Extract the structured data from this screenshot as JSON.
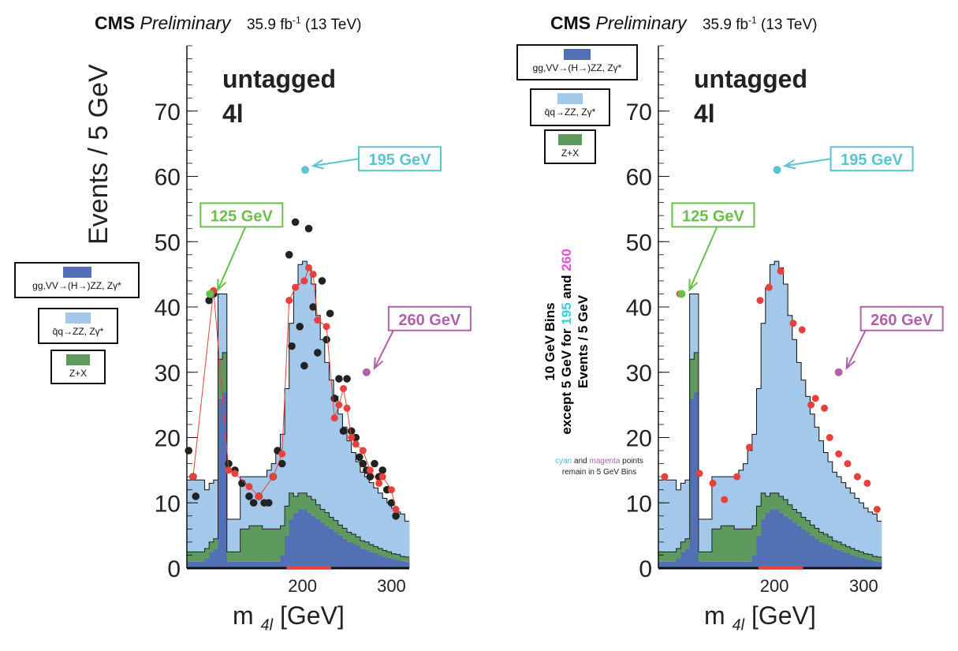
{
  "header": {
    "experiment": "CMS",
    "status": "Preliminary",
    "lumi": "35.9 fb",
    "lumi_sup": "-1",
    "energy": "(13 TeV)"
  },
  "ylabel": "Events / 5 GeV",
  "xlabel": "m",
  "xlabel_sub": "4l",
  "xlabel_unit": "[GeV]",
  "category": {
    "line1": "untagged",
    "line2": "4l"
  },
  "legend": [
    {
      "label": "gg,VV→(H→)ZZ, Zγ*",
      "color": "#5470b4"
    },
    {
      "label": "q̄q→ZZ, Zγ*",
      "color": "#a3c8ea"
    },
    {
      "label": "Z+X",
      "color": "#5e9a5e"
    }
  ],
  "right_note": {
    "line1": "10 GeV Bins",
    "line2a": "except 5 GeV for ",
    "v195": "195",
    "and": " and ",
    "v260": "260",
    "line3": "Events / 5 GeV"
  },
  "small_note": {
    "cyan": "cyan",
    "and": " and ",
    "magenta": "magenta",
    "rest": " points",
    "line2": "remain in 5 GeV Bins"
  },
  "colors": {
    "ggH": "#5470b4",
    "qqZZ": "#a3c8ea",
    "zx": "#5e9a5e",
    "data": "#222222",
    "fit": "#e8413c",
    "cyan": "#5bc4d0",
    "magenta": "#b062a8",
    "green": "#6abf4b"
  },
  "chart_data": [
    {
      "type": "histogram",
      "panel": "left",
      "xlim": [
        70,
        320
      ],
      "ylim": [
        0,
        80
      ],
      "yticks": [
        0,
        10,
        20,
        30,
        40,
        50,
        60,
        70
      ],
      "xticks": [
        200,
        300
      ],
      "bin_width": 5,
      "bin_low": [
        70,
        75,
        80,
        85,
        90,
        95,
        100,
        105,
        110,
        115,
        120,
        125,
        130,
        135,
        140,
        145,
        150,
        155,
        160,
        165,
        170,
        175,
        180,
        185,
        190,
        195,
        200,
        205,
        210,
        215,
        220,
        225,
        230,
        235,
        240,
        245,
        250,
        255,
        260,
        265,
        270,
        275,
        280,
        285,
        290,
        295,
        300,
        305,
        310,
        315
      ],
      "stack": {
        "ggH": [
          1,
          1,
          1,
          1,
          1.5,
          2.5,
          3,
          26,
          27,
          1,
          1,
          1,
          1,
          1,
          1,
          1,
          1,
          1,
          1,
          1,
          1,
          2,
          5,
          7.5,
          8.5,
          9,
          9,
          8.5,
          8,
          7.5,
          7,
          6.5,
          6,
          5.5,
          5,
          4.5,
          4,
          3.8,
          3.5,
          3,
          2.8,
          2.5,
          2.3,
          2,
          1.8,
          1.6,
          1.4,
          1.3,
          1.1,
          1
        ],
        "zx": [
          1.5,
          1.5,
          1.5,
          1.5,
          1.5,
          1.5,
          1.5,
          6,
          6,
          1.5,
          1.5,
          1.5,
          5,
          5,
          5.5,
          5.5,
          5.5,
          5,
          5,
          5,
          5,
          4.5,
          4.5,
          4,
          2.5,
          2.5,
          2.5,
          2.5,
          2.5,
          2.2,
          2,
          2,
          1.8,
          1.8,
          1.6,
          1.6,
          1.5,
          1.4,
          1.3,
          1.2,
          1.2,
          1.1,
          1,
          1,
          0.9,
          0.9,
          0.8,
          0.8,
          0.7,
          0.7
        ],
        "qqZZ": [
          11,
          11,
          11,
          11,
          9,
          9,
          9,
          10,
          9,
          5,
          5,
          5,
          8,
          8,
          7.5,
          7.5,
          7.5,
          8,
          9,
          10,
          12,
          14,
          18,
          26,
          32,
          35,
          35.5,
          35,
          33,
          29,
          26,
          23,
          21,
          19,
          17,
          15.5,
          14,
          12.5,
          11.5,
          10.5,
          10,
          9.5,
          9,
          8.5,
          8,
          7.5,
          7,
          6.5,
          6.5,
          5.5
        ]
      },
      "data_points": [
        [
          72,
          18
        ],
        [
          77,
          14
        ],
        [
          80,
          11
        ],
        [
          95,
          41
        ],
        [
          100,
          42
        ],
        [
          117,
          16
        ],
        [
          124,
          15
        ],
        [
          132,
          13
        ],
        [
          140,
          11
        ],
        [
          145,
          10
        ],
        [
          151,
          11
        ],
        [
          157,
          10
        ],
        [
          162,
          10
        ],
        [
          167,
          14
        ],
        [
          172,
          18
        ],
        [
          177,
          16
        ],
        [
          185,
          48
        ],
        [
          188,
          34
        ],
        [
          192,
          53
        ],
        [
          197,
          37
        ],
        [
          202,
          31
        ],
        [
          207,
          52
        ],
        [
          212,
          40
        ],
        [
          217,
          33
        ],
        [
          222,
          44
        ],
        [
          227,
          35
        ],
        [
          231,
          39
        ],
        [
          236,
          26
        ],
        [
          241,
          29
        ],
        [
          246,
          21
        ],
        [
          250,
          29
        ],
        [
          255,
          21
        ],
        [
          260,
          20
        ],
        [
          264,
          17
        ],
        [
          268,
          16
        ],
        [
          272,
          15
        ],
        [
          276,
          14
        ],
        [
          281,
          16
        ],
        [
          286,
          14
        ],
        [
          290,
          15
        ],
        [
          295,
          12
        ],
        [
          300,
          10
        ],
        [
          305,
          8
        ]
      ],
      "fit_points": [
        [
          77,
          14
        ],
        [
          100,
          42.5
        ],
        [
          117,
          15
        ],
        [
          124,
          14.5
        ],
        [
          140,
          12.5
        ],
        [
          151,
          11
        ],
        [
          167,
          14
        ],
        [
          177,
          17.5
        ],
        [
          185,
          41
        ],
        [
          192,
          43
        ],
        [
          202,
          44
        ],
        [
          207,
          46
        ],
        [
          212,
          45
        ],
        [
          217,
          38
        ],
        [
          227,
          37
        ],
        [
          236,
          23
        ],
        [
          241,
          25
        ],
        [
          246,
          27.5
        ],
        [
          250,
          24.5
        ],
        [
          255,
          20
        ],
        [
          260,
          19
        ],
        [
          268,
          18
        ],
        [
          276,
          15
        ],
        [
          286,
          13
        ],
        [
          290,
          14
        ],
        [
          300,
          12
        ],
        [
          305,
          9
        ]
      ],
      "annotations": [
        {
          "label": "125 GeV",
          "x": 96,
          "y": 42,
          "color": "green"
        },
        {
          "label": "195 GeV",
          "x": 203,
          "y": 61,
          "color": "cyan"
        },
        {
          "label": "260 GeV",
          "x": 272,
          "y": 30,
          "color": "magenta"
        }
      ]
    },
    {
      "type": "histogram",
      "panel": "right",
      "xlim": [
        70,
        320
      ],
      "ylim": [
        0,
        80
      ],
      "yticks": [
        0,
        10,
        20,
        30,
        40,
        50,
        60,
        70
      ],
      "xticks": [
        200,
        300
      ],
      "fit_points": [
        [
          77,
          14
        ],
        [
          94,
          42
        ],
        [
          116,
          14.5
        ],
        [
          131,
          13
        ],
        [
          144,
          10.5
        ],
        [
          158,
          14
        ],
        [
          172,
          18.5
        ],
        [
          184,
          41
        ],
        [
          194,
          43
        ],
        [
          207,
          45.5
        ],
        [
          221,
          37.5
        ],
        [
          231,
          36.5
        ],
        [
          241,
          25
        ],
        [
          246,
          26
        ],
        [
          256,
          24.5
        ],
        [
          262,
          20
        ],
        [
          272,
          17.5
        ],
        [
          282,
          16
        ],
        [
          293,
          14
        ],
        [
          304,
          13
        ],
        [
          315,
          9
        ]
      ],
      "annotations": [
        {
          "label": "125 GeV",
          "x": 96,
          "y": 42,
          "color": "green"
        },
        {
          "label": "195 GeV",
          "x": 203,
          "y": 61,
          "color": "cyan"
        },
        {
          "label": "260 GeV",
          "x": 272,
          "y": 30,
          "color": "magenta"
        }
      ]
    }
  ]
}
